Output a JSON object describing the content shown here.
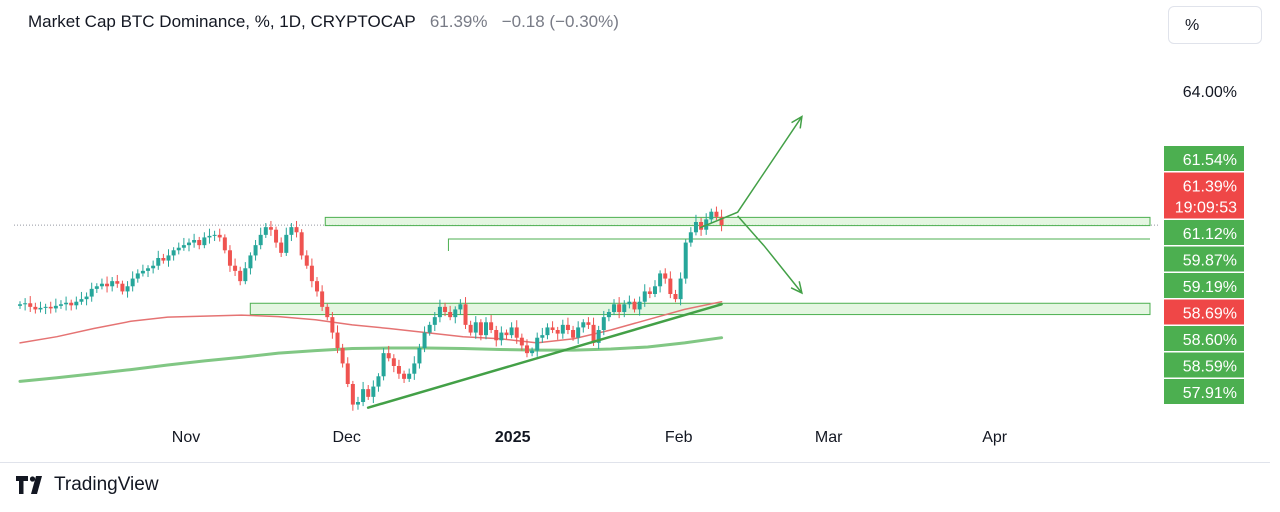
{
  "header": {
    "symbol_title": "Market Cap BTC Dominance, %, 1D, CRYPTOCAP",
    "last_value": "61.39%",
    "change": "−0.18 (−0.30%)"
  },
  "scale_toggle": "%",
  "brand": {
    "name": "TradingView",
    "logo_icon": "tradingview-logo-icon"
  },
  "colors": {
    "up": "#26a69a",
    "down": "#ef5350",
    "ma_fast": "#e57373",
    "ma_slow": "#81c784",
    "zone_fill": "#d9f2d4",
    "zone_line": "#4caf50",
    "label_green": "#4caf50",
    "label_red": "#ef4747"
  },
  "chart_data": {
    "type": "candlestick",
    "x_labels": [
      {
        "text": "Nov",
        "date": "2024-11-01",
        "bold": false
      },
      {
        "text": "Dec",
        "date": "2024-12-01",
        "bold": false
      },
      {
        "text": "2025",
        "date": "2025-01-01",
        "bold": true
      },
      {
        "text": "Feb",
        "date": "2025-02-01",
        "bold": false
      },
      {
        "text": "Mar",
        "date": "2025-03-01",
        "bold": false
      },
      {
        "text": "Apr",
        "date": "2025-04-01",
        "bold": false
      }
    ],
    "y_tick": "64.00%",
    "y_range": [
      57.6,
      64.6
    ],
    "price_labels": [
      {
        "text": "61.54%",
        "value": 61.54,
        "kind": "green"
      },
      {
        "text": "61.39%",
        "sub": "19:09:53",
        "value": 61.39,
        "kind": "red"
      },
      {
        "text": "61.12%",
        "value": 61.12,
        "kind": "green"
      },
      {
        "text": "59.87%",
        "value": 59.87,
        "kind": "green"
      },
      {
        "text": "59.19%",
        "value": 59.19,
        "kind": "green"
      },
      {
        "text": "58.69%",
        "value": 58.69,
        "kind": "red"
      },
      {
        "text": "58.60%",
        "value": 58.6,
        "kind": "green"
      },
      {
        "text": "58.59%",
        "value": 58.59,
        "kind": "green"
      },
      {
        "text": "57.91%",
        "value": 57.91,
        "kind": "green"
      }
    ],
    "closes": [
      59.85,
      59.87,
      59.8,
      59.75,
      59.78,
      59.8,
      59.77,
      59.82,
      59.85,
      59.88,
      59.83,
      59.9,
      59.95,
      60.0,
      60.15,
      60.2,
      60.25,
      60.2,
      60.3,
      60.25,
      60.1,
      60.2,
      60.35,
      60.45,
      60.5,
      60.55,
      60.6,
      60.75,
      60.7,
      60.8,
      60.9,
      60.95,
      61.0,
      61.05,
      61.1,
      61.0,
      61.15,
      61.18,
      61.2,
      61.15,
      60.9,
      60.6,
      60.5,
      60.3,
      60.55,
      60.8,
      61.0,
      61.2,
      61.35,
      61.3,
      61.05,
      60.85,
      61.2,
      61.35,
      61.25,
      60.8,
      60.6,
      60.3,
      60.1,
      59.8,
      59.6,
      59.3,
      59.0,
      58.7,
      58.3,
      57.9,
      57.95,
      58.2,
      58.05,
      58.25,
      58.45,
      58.9,
      58.8,
      58.65,
      58.5,
      58.4,
      58.5,
      58.7,
      59.0,
      59.3,
      59.45,
      59.6,
      59.8,
      59.7,
      59.6,
      59.75,
      59.85,
      59.45,
      59.3,
      59.5,
      59.25,
      59.5,
      59.35,
      59.15,
      59.3,
      59.25,
      59.4,
      59.2,
      59.05,
      58.9,
      58.95,
      59.2,
      59.25,
      59.4,
      59.35,
      59.28,
      59.45,
      59.35,
      59.2,
      59.4,
      59.5,
      59.45,
      59.1,
      59.35,
      59.6,
      59.7,
      59.85,
      59.7,
      59.85,
      59.9,
      59.75,
      59.9,
      60.1,
      60.05,
      60.2,
      60.45,
      60.35,
      60.05,
      59.95,
      60.35,
      61.05,
      61.25,
      61.45,
      61.3,
      61.5,
      61.65,
      61.55,
      61.39
    ],
    "close_dates": [
      "2024-10-01",
      "2025-02-09"
    ],
    "current_price": 61.39,
    "ma_fast": [
      [
        59.1,
        59.22,
        59.38,
        59.52,
        59.6,
        59.62,
        59.64,
        59.61,
        59.55,
        59.45,
        59.38,
        59.3,
        59.22,
        59.18,
        59.1,
        59.18,
        59.35,
        59.55,
        59.75,
        59.9
      ],
      [
        "2024-10-01",
        "2025-02-09"
      ]
    ],
    "ma_slow": [
      [
        58.35,
        58.42,
        58.5,
        58.58,
        58.67,
        58.75,
        58.82,
        58.9,
        58.95,
        58.99,
        59.0,
        59.0,
        58.99,
        58.97,
        58.96,
        58.96,
        58.98,
        59.02,
        59.1,
        59.2
      ],
      [
        "2024-10-01",
        "2025-02-09"
      ]
    ],
    "zones": [
      {
        "top": 61.54,
        "bottom": 61.38,
        "from": "2024-11-27",
        "to": "2025-04-30"
      },
      {
        "top": 59.87,
        "bottom": 59.65,
        "from": "2024-11-13",
        "to": "2025-04-30"
      },
      {
        "top": 61.12,
        "bottom": 61.12,
        "from": "2024-12-20",
        "to": "2025-04-30"
      }
    ],
    "trendline": [
      [
        "2024-12-05",
        57.84
      ],
      [
        "2025-02-09",
        59.85
      ]
    ],
    "arrows": [
      [
        [
          "2025-02-05",
          61.34
        ],
        [
          "2025-02-12",
          61.64
        ],
        [
          "2025-02-24",
          63.5
        ]
      ],
      [
        [
          "2025-02-12",
          61.57
        ],
        [
          "2025-02-17",
          60.98
        ],
        [
          "2025-02-24",
          60.07
        ]
      ]
    ]
  }
}
